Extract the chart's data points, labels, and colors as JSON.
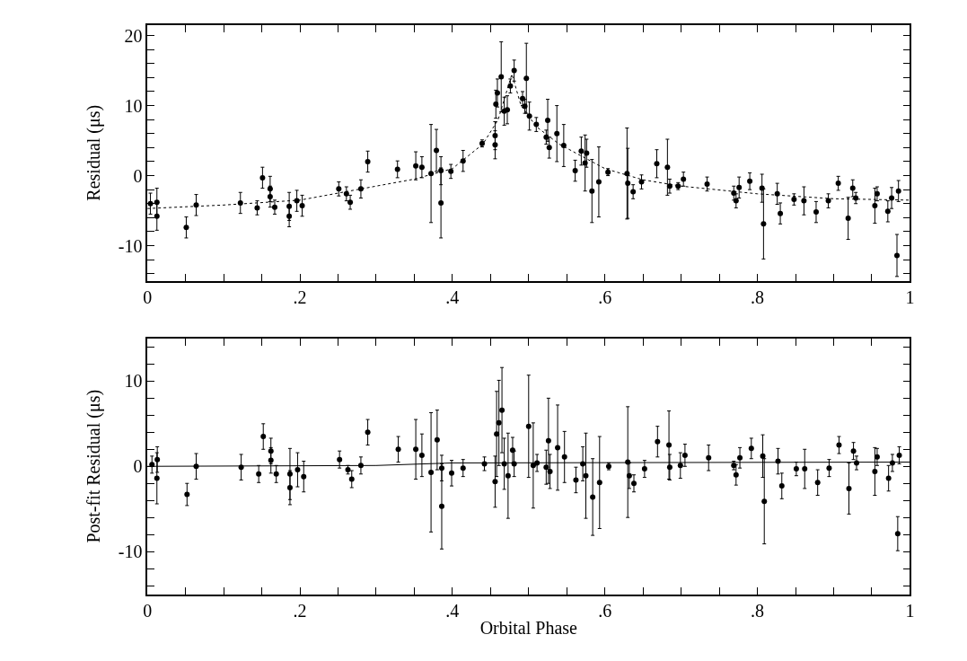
{
  "chart_data": [
    {
      "type": "scatter",
      "ylabel": "Residual (μs)",
      "xlim": [
        0,
        1
      ],
      "ylim": [
        -15,
        21.5
      ],
      "xticks": [
        0,
        {
          "value": 0.05,
          "label": null
        },
        {
          "value": 0.1,
          "label": null
        },
        {
          "value": 0.15,
          "label": null
        },
        {
          "value": 0.2,
          "label": ".2"
        },
        {
          "value": 0.25,
          "label": null
        },
        {
          "value": 0.3,
          "label": null
        },
        {
          "value": 0.35,
          "label": null
        },
        {
          "value": 0.4,
          "label": ".4"
        },
        {
          "value": 0.45,
          "label": null
        },
        {
          "value": 0.5,
          "label": null
        },
        {
          "value": 0.55,
          "label": null
        },
        {
          "value": 0.6,
          "label": ".6"
        },
        {
          "value": 0.65,
          "label": null
        },
        {
          "value": 0.7,
          "label": null
        },
        {
          "value": 0.75,
          "label": null
        },
        {
          "value": 0.8,
          "label": ".8"
        },
        {
          "value": 0.85,
          "label": null
        },
        {
          "value": 0.9,
          "label": null
        },
        {
          "value": 0.95,
          "label": null
        },
        1
      ],
      "yticks": [
        {
          "value": -14,
          "label": null
        },
        {
          "value": -12,
          "label": null
        },
        -10,
        {
          "value": -8,
          "label": null
        },
        {
          "value": -6,
          "label": null
        },
        {
          "value": -4,
          "label": null
        },
        {
          "value": -2,
          "label": null
        },
        0,
        {
          "value": 2,
          "label": null
        },
        {
          "value": 4,
          "label": null
        },
        {
          "value": 6,
          "label": null
        },
        {
          "value": 8,
          "label": null
        },
        10,
        {
          "value": 12,
          "label": null
        },
        {
          "value": 14,
          "label": null
        },
        {
          "value": 16,
          "label": null
        },
        {
          "value": 18,
          "label": null
        },
        20
      ],
      "series": [
        {
          "type": "scatter",
          "color": "#000000",
          "marker": "circle",
          "x": [
            0.004,
            0.0125,
            0.0125,
            0.051,
            0.064,
            0.122,
            0.144,
            0.151,
            0.161,
            0.161,
            0.167,
            0.186,
            0.186,
            0.196,
            0.203,
            0.251,
            0.261,
            0.266,
            0.28,
            0.289,
            0.328,
            0.352,
            0.36,
            0.372,
            0.379,
            0.385,
            0.385,
            0.398,
            0.414,
            0.439,
            0.456,
            0.456,
            0.457,
            0.459,
            0.464,
            0.468,
            0.472,
            0.476,
            0.481,
            0.492,
            0.495,
            0.497,
            0.501,
            0.51,
            0.523,
            0.525,
            0.527,
            0.537,
            0.546,
            0.561,
            0.569,
            0.574,
            0.576,
            0.583,
            0.592,
            0.604,
            0.629,
            0.63,
            0.637,
            0.648,
            0.668,
            0.682,
            0.685,
            0.696,
            0.703,
            0.734,
            0.769,
            0.772,
            0.776,
            0.79,
            0.806,
            0.808,
            0.826,
            0.83,
            0.848,
            0.861,
            0.877,
            0.893,
            0.906,
            0.919,
            0.925,
            0.929,
            0.954,
            0.957,
            0.971,
            0.976,
            0.983,
            0.985
          ],
          "values": [
            -4.0,
            -3.8,
            -5.8,
            -7.4,
            -4.2,
            -3.9,
            -4.6,
            -0.3,
            -1.9,
            -3.0,
            -4.5,
            -4.4,
            -5.8,
            -3.6,
            -4.3,
            -1.9,
            -2.6,
            -3.8,
            -1.9,
            2.0,
            0.9,
            1.4,
            1.2,
            0.3,
            3.6,
            0.7,
            -3.9,
            0.6,
            2.1,
            4.6,
            5.7,
            4.4,
            10.2,
            11.8,
            14.1,
            9.2,
            9.4,
            12.8,
            15.0,
            11.0,
            9.9,
            13.9,
            8.5,
            7.3,
            5.5,
            7.9,
            4.0,
            6.0,
            4.3,
            0.7,
            3.5,
            1.8,
            3.2,
            -2.2,
            -0.9,
            0.5,
            0.3,
            -1.1,
            -2.3,
            -0.9,
            1.7,
            1.2,
            -1.5,
            -1.5,
            -0.5,
            -1.2,
            -2.5,
            -3.6,
            -1.7,
            -0.8,
            -1.8,
            -6.9,
            -2.6,
            -5.4,
            -3.4,
            -3.6,
            -5.2,
            -3.6,
            -1.1,
            -6.1,
            -1.8,
            -3.2,
            -4.3,
            -2.6,
            -5.1,
            -3.2,
            -11.4,
            -2.2
          ],
          "errors": [
            1.5,
            2,
            2,
            1.5,
            1.5,
            1.5,
            1,
            1.5,
            1.8,
            1.5,
            1,
            2,
            1.5,
            1.5,
            1.5,
            1,
            1,
            1,
            1.3,
            1.5,
            1.2,
            2,
            1.5,
            7,
            3,
            2,
            5,
            1,
            1.5,
            0.5,
            2,
            2,
            2,
            2,
            5,
            2,
            2,
            1,
            1.5,
            1,
            1,
            5,
            2,
            1,
            1,
            3,
            1.5,
            4,
            3,
            1.5,
            2,
            4,
            2,
            4.5,
            5,
            0.5,
            6.5,
            5,
            1,
            1,
            2,
            4,
            1,
            0.5,
            1,
            1,
            1,
            1,
            1.5,
            1.2,
            2,
            5,
            1.5,
            1.5,
            0.8,
            2,
            1.5,
            1,
            1,
            3,
            1.2,
            0.8,
            2.5,
            1,
            1.5,
            1.5,
            3,
            1.5
          ]
        },
        {
          "type": "line",
          "color": "#000000",
          "line_style": "dotted",
          "x": [
            0,
            0.1,
            0.2,
            0.3,
            0.35,
            0.4,
            0.44,
            0.46,
            0.478,
            0.49,
            0.51,
            0.54,
            0.6,
            0.65,
            0.7,
            0.8,
            0.9,
            1.0
          ],
          "values": [
            -4.7,
            -4.2,
            -3.5,
            -1.5,
            -0.5,
            1.0,
            4.5,
            8,
            14.5,
            10,
            7,
            4.5,
            1.0,
            -0.6,
            -1.5,
            -2.6,
            -3.3,
            -3.5
          ]
        }
      ]
    },
    {
      "type": "scatter",
      "xlabel": "Orbital Phase",
      "ylabel": "Post-fit Residual (μs)",
      "xlim": [
        0,
        1
      ],
      "ylim": [
        -15,
        15
      ],
      "xticks": [
        0,
        {
          "value": 0.05,
          "label": null
        },
        {
          "value": 0.1,
          "label": null
        },
        {
          "value": 0.15,
          "label": null
        },
        {
          "value": 0.2,
          "label": ".2"
        },
        {
          "value": 0.25,
          "label": null
        },
        {
          "value": 0.3,
          "label": null
        },
        {
          "value": 0.35,
          "label": null
        },
        {
          "value": 0.4,
          "label": ".4"
        },
        {
          "value": 0.45,
          "label": null
        },
        {
          "value": 0.5,
          "label": null
        },
        {
          "value": 0.55,
          "label": null
        },
        {
          "value": 0.6,
          "label": ".6"
        },
        {
          "value": 0.65,
          "label": null
        },
        {
          "value": 0.7,
          "label": null
        },
        {
          "value": 0.75,
          "label": null
        },
        {
          "value": 0.8,
          "label": ".8"
        },
        {
          "value": 0.85,
          "label": null
        },
        {
          "value": 0.9,
          "label": null
        },
        {
          "value": 0.95,
          "label": null
        },
        1
      ],
      "yticks": [
        {
          "value": -14,
          "label": null
        },
        {
          "value": -12,
          "label": null
        },
        -10,
        {
          "value": -8,
          "label": null
        },
        {
          "value": -6,
          "label": null
        },
        {
          "value": -4,
          "label": null
        },
        {
          "value": -2,
          "label": null
        },
        0,
        {
          "value": 2,
          "label": null
        },
        {
          "value": 4,
          "label": null
        },
        {
          "value": 6,
          "label": null
        },
        {
          "value": 8,
          "label": null
        },
        10,
        {
          "value": 12,
          "label": null
        },
        {
          "value": 14,
          "label": null
        }
      ],
      "series": [
        {
          "type": "scatter",
          "color": "#000000",
          "marker": "circle",
          "x": [
            0.006,
            0.013,
            0.0125,
            0.052,
            0.064,
            0.123,
            0.146,
            0.152,
            0.162,
            0.162,
            0.169,
            0.187,
            0.187,
            0.197,
            0.205,
            0.252,
            0.263,
            0.268,
            0.28,
            0.289,
            0.329,
            0.352,
            0.36,
            0.372,
            0.38,
            0.386,
            0.386,
            0.399,
            0.414,
            0.442,
            0.456,
            0.458,
            0.461,
            0.465,
            0.468,
            0.473,
            0.479,
            0.481,
            0.5,
            0.506,
            0.511,
            0.523,
            0.526,
            0.528,
            0.538,
            0.547,
            0.562,
            0.571,
            0.575,
            0.584,
            0.593,
            0.605,
            0.63,
            0.632,
            0.638,
            0.652,
            0.669,
            0.684,
            0.685,
            0.699,
            0.705,
            0.736,
            0.769,
            0.772,
            0.777,
            0.792,
            0.807,
            0.809,
            0.827,
            0.832,
            0.851,
            0.862,
            0.879,
            0.894,
            0.907,
            0.92,
            0.926,
            0.93,
            0.954,
            0.957,
            0.972,
            0.977,
            0.984,
            0.986
          ],
          "values": [
            0.2,
            0.8,
            -1.4,
            -3.3,
            0.0,
            -0.1,
            -0.9,
            3.5,
            1.8,
            0.7,
            -0.9,
            -0.9,
            -2.5,
            -0.4,
            -1.2,
            0.8,
            -0.4,
            -1.5,
            0.1,
            4.0,
            2.0,
            2.0,
            1.3,
            -0.7,
            3.1,
            -0.2,
            -4.7,
            -0.8,
            -0.2,
            0.3,
            -1.8,
            3.8,
            5.1,
            6.6,
            0.3,
            -1.1,
            1.9,
            0.3,
            4.7,
            0.1,
            0.4,
            -0.1,
            3.0,
            -0.6,
            2.2,
            1.1,
            -1.6,
            0.3,
            -1.1,
            -3.6,
            -1.9,
            0.0,
            0.5,
            -1.1,
            -2.0,
            -0.3,
            2.9,
            2.5,
            -0.1,
            0.1,
            1.3,
            1.0,
            0.1,
            -1.0,
            1.0,
            2.1,
            1.2,
            -4.1,
            0.6,
            -2.3,
            -0.3,
            -0.3,
            -1.9,
            -0.2,
            2.5,
            -2.6,
            1.8,
            0.4,
            -0.6,
            1.1,
            -1.4,
            0.4,
            -7.9,
            1.3
          ],
          "errors": [
            1,
            1.5,
            3,
            1.3,
            1.5,
            1.5,
            1,
            1.5,
            1.5,
            1.5,
            1,
            3,
            2,
            2,
            1.8,
            1,
            0.5,
            1,
            1,
            1.5,
            1.5,
            3.5,
            2.5,
            7,
            3.5,
            1.5,
            5,
            1.5,
            1,
            0.8,
            3,
            5,
            5,
            5,
            3,
            5,
            1.5,
            1.5,
            6,
            5,
            1,
            2,
            5,
            2,
            5,
            3,
            1.5,
            2,
            5,
            4.5,
            5.4,
            0.4,
            6.5,
            1.5,
            1,
            1,
            1.8,
            4,
            1.5,
            1.5,
            1.3,
            1.5,
            0.5,
            1.2,
            1.2,
            1.2,
            2.5,
            5,
            1.5,
            1.5,
            0.8,
            2.3,
            1.5,
            1,
            1,
            3,
            1,
            0.8,
            2.8,
            1,
            1.5,
            1,
            2,
            1
          ]
        },
        {
          "type": "line",
          "color": "#000000",
          "line_style": "solid",
          "x": [
            0,
            0.3,
            0.4,
            1.0
          ],
          "values": [
            0.0,
            0.1,
            0.4,
            0.5
          ]
        }
      ]
    }
  ]
}
